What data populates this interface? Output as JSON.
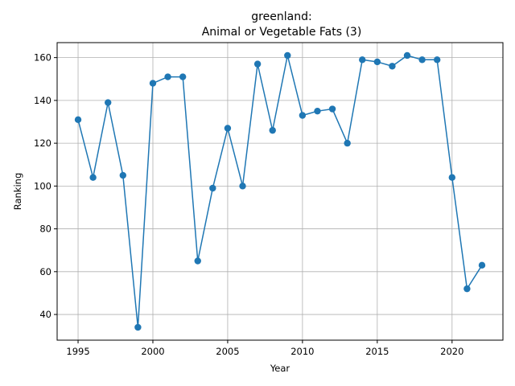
{
  "chart_data": {
    "type": "line",
    "title_line1": "greenland:",
    "title_line2": "Animal or Vegetable Fats (3)",
    "xlabel": "Year",
    "ylabel": "Ranking",
    "xlim": [
      1993.6,
      2023.4
    ],
    "ylim": [
      28,
      167
    ],
    "x_ticks": [
      1995,
      2000,
      2005,
      2010,
      2015,
      2020
    ],
    "y_ticks": [
      40,
      60,
      80,
      100,
      120,
      140,
      160
    ],
    "grid": true,
    "colors": {
      "line": "#1f77b4",
      "grid": "#b0b0b0",
      "axis": "#000000"
    },
    "series": [
      {
        "x": [
          1995,
          1996,
          1997,
          1998,
          1999,
          2000,
          2001,
          2002,
          2003,
          2004,
          2005,
          2006,
          2007,
          2008,
          2009,
          2010,
          2011,
          2012,
          2013,
          2014,
          2015,
          2016,
          2017,
          2018,
          2019,
          2020,
          2021,
          2022
        ],
        "values": [
          131,
          104,
          139,
          105,
          34,
          148,
          151,
          151,
          65,
          99,
          127,
          100,
          157,
          126,
          161,
          133,
          135,
          136,
          120,
          159,
          158,
          156,
          161,
          159,
          159,
          104,
          52,
          63
        ]
      }
    ]
  }
}
